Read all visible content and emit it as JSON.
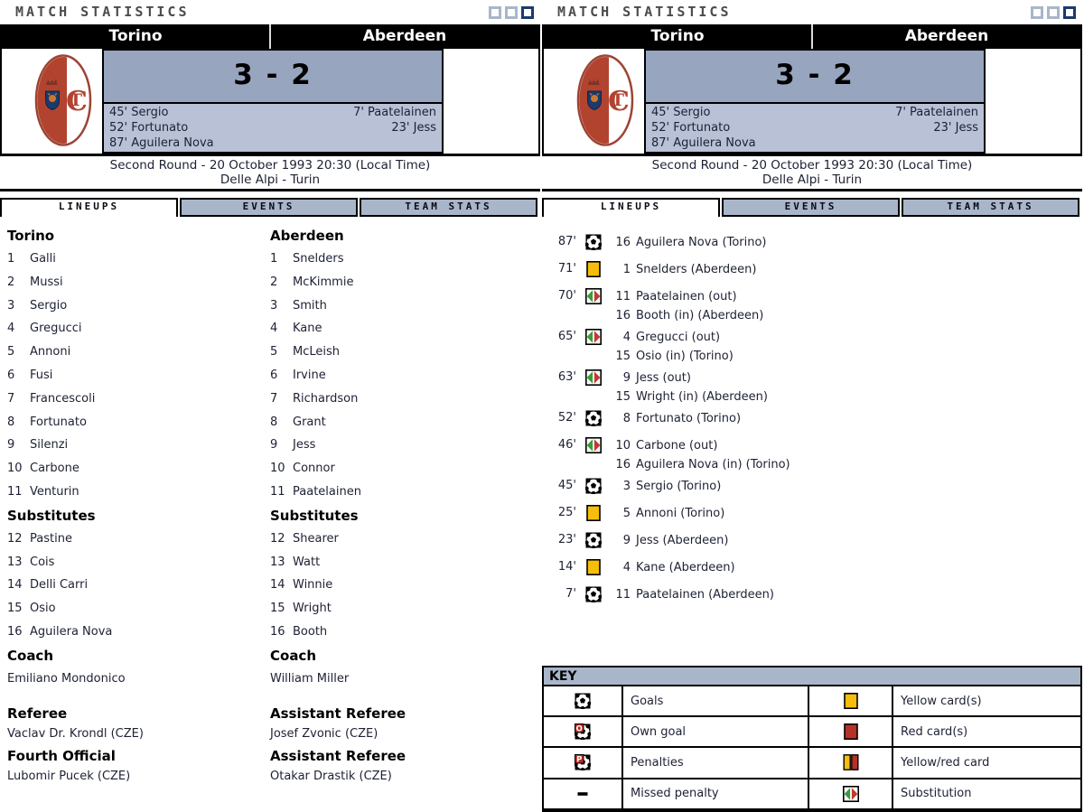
{
  "app": {
    "title": "MATCH STATISTICS",
    "window_squares": [
      "light",
      "light",
      "dark"
    ]
  },
  "match": {
    "home_team": "Torino",
    "away_team": "Aberdeen",
    "score": "3 - 2",
    "home_scorers": [
      "45' Sergio",
      "52' Fortunato",
      "87' Aguilera Nova"
    ],
    "away_scorers": [
      "7' Paatelainen",
      "23' Jess"
    ],
    "round_info": "Second Round - 20 October 1993 20:30 (Local Time)",
    "venue_info": "Delle Alpi - Turin"
  },
  "tabs": [
    {
      "label": "LINEUPS",
      "active": true
    },
    {
      "label": "EVENTS",
      "active": false
    },
    {
      "label": "TEAM STATS",
      "active": false
    }
  ],
  "lineups": {
    "substitutes_label": "Substitutes",
    "coach_label": "Coach",
    "home": {
      "team": "Torino",
      "players": [
        [
          "1",
          "Galli"
        ],
        [
          "2",
          "Mussi"
        ],
        [
          "3",
          "Sergio"
        ],
        [
          "4",
          "Gregucci"
        ],
        [
          "5",
          "Annoni"
        ],
        [
          "6",
          "Fusi"
        ],
        [
          "7",
          "Francescoli"
        ],
        [
          "8",
          "Fortunato"
        ],
        [
          "9",
          "Silenzi"
        ],
        [
          "10",
          "Carbone"
        ],
        [
          "11",
          "Venturin"
        ]
      ],
      "substitutes": [
        [
          "12",
          "Pastine"
        ],
        [
          "13",
          "Cois"
        ],
        [
          "14",
          "Delli Carri"
        ],
        [
          "15",
          "Osio"
        ],
        [
          "16",
          "Aguilera Nova"
        ]
      ],
      "coach": "Emiliano Mondonico"
    },
    "away": {
      "team": "Aberdeen",
      "players": [
        [
          "1",
          "Snelders"
        ],
        [
          "2",
          "McKimmie"
        ],
        [
          "3",
          "Smith"
        ],
        [
          "4",
          "Kane"
        ],
        [
          "5",
          "McLeish"
        ],
        [
          "6",
          "Irvine"
        ],
        [
          "7",
          "Richardson"
        ],
        [
          "8",
          "Grant"
        ],
        [
          "9",
          "Jess"
        ],
        [
          "10",
          "Connor"
        ],
        [
          "11",
          "Paatelainen"
        ]
      ],
      "substitutes": [
        [
          "12",
          "Shearer"
        ],
        [
          "13",
          "Watt"
        ],
        [
          "14",
          "Winnie"
        ],
        [
          "15",
          "Wright"
        ],
        [
          "16",
          "Booth"
        ]
      ],
      "coach": "William Miller"
    }
  },
  "officials": {
    "left": [
      {
        "role": "Referee",
        "name": "Vaclav Dr. Krondl (CZE)"
      },
      {
        "role": "Fourth Official",
        "name": "Lubomir Pucek (CZE)"
      }
    ],
    "right": [
      {
        "role": "Assistant Referee",
        "name": "Josef Zvonic (CZE)"
      },
      {
        "role": "Assistant Referee",
        "name": "Otakar Drastik (CZE)"
      }
    ]
  },
  "events": [
    {
      "minute": "87'",
      "icon": "goal",
      "lines": [
        {
          "num": "16",
          "text": "Aguilera Nova (Torino)"
        }
      ]
    },
    {
      "minute": "71'",
      "icon": "yellow-card",
      "lines": [
        {
          "num": "1",
          "text": "Snelders (Aberdeen)"
        }
      ]
    },
    {
      "minute": "70'",
      "icon": "substitution",
      "lines": [
        {
          "num": "11",
          "text": "Paatelainen (out)"
        },
        {
          "num": "16",
          "text": "Booth (in) (Aberdeen)"
        }
      ]
    },
    {
      "minute": "65'",
      "icon": "substitution",
      "lines": [
        {
          "num": "4",
          "text": "Gregucci (out)"
        },
        {
          "num": "15",
          "text": "Osio (in) (Torino)"
        }
      ]
    },
    {
      "minute": "63'",
      "icon": "substitution",
      "lines": [
        {
          "num": "9",
          "text": "Jess (out)"
        },
        {
          "num": "15",
          "text": "Wright (in) (Aberdeen)"
        }
      ]
    },
    {
      "minute": "52'",
      "icon": "goal",
      "lines": [
        {
          "num": "8",
          "text": "Fortunato (Torino)"
        }
      ]
    },
    {
      "minute": "46'",
      "icon": "substitution",
      "lines": [
        {
          "num": "10",
          "text": "Carbone (out)"
        },
        {
          "num": "16",
          "text": "Aguilera Nova (in) (Torino)"
        }
      ]
    },
    {
      "minute": "45'",
      "icon": "goal",
      "lines": [
        {
          "num": "3",
          "text": "Sergio (Torino)"
        }
      ]
    },
    {
      "minute": "25'",
      "icon": "yellow-card",
      "lines": [
        {
          "num": "5",
          "text": "Annoni (Torino)"
        }
      ]
    },
    {
      "minute": "23'",
      "icon": "goal",
      "lines": [
        {
          "num": "9",
          "text": "Jess (Aberdeen)"
        }
      ]
    },
    {
      "minute": "14'",
      "icon": "yellow-card",
      "lines": [
        {
          "num": "4",
          "text": "Kane (Aberdeen)"
        }
      ]
    },
    {
      "minute": "7'",
      "icon": "goal",
      "lines": [
        {
          "num": "11",
          "text": "Paatelainen (Aberdeen)"
        }
      ]
    }
  ],
  "key": {
    "title": "KEY",
    "rows": [
      [
        {
          "icon": "goal",
          "label": "Goals"
        },
        {
          "icon": "yellow-card",
          "label": "Yellow card(s)"
        }
      ],
      [
        {
          "icon": "own-goal",
          "label": "Own goal"
        },
        {
          "icon": "red-card",
          "label": "Red card(s)"
        }
      ],
      [
        {
          "icon": "penalty",
          "label": "Penalties"
        },
        {
          "icon": "yellow-red-card",
          "label": "Yellow/red card"
        }
      ],
      [
        {
          "icon": "missed-penalty",
          "label": "Missed penalty"
        },
        {
          "icon": "substitution",
          "label": "Substitution"
        }
      ]
    ]
  },
  "colors": {
    "score_panel": "#97a5bf",
    "scorers_panel": "#b8c1d5",
    "tab_inactive": "#a9b6ca",
    "navy_accent": "#1c3a6b",
    "yellow_card": "#f5be0b",
    "red_card": "#b53229",
    "sub_green": "#3c9b3c",
    "sub_red": "#c13931",
    "torino_red": "#b2432f"
  }
}
